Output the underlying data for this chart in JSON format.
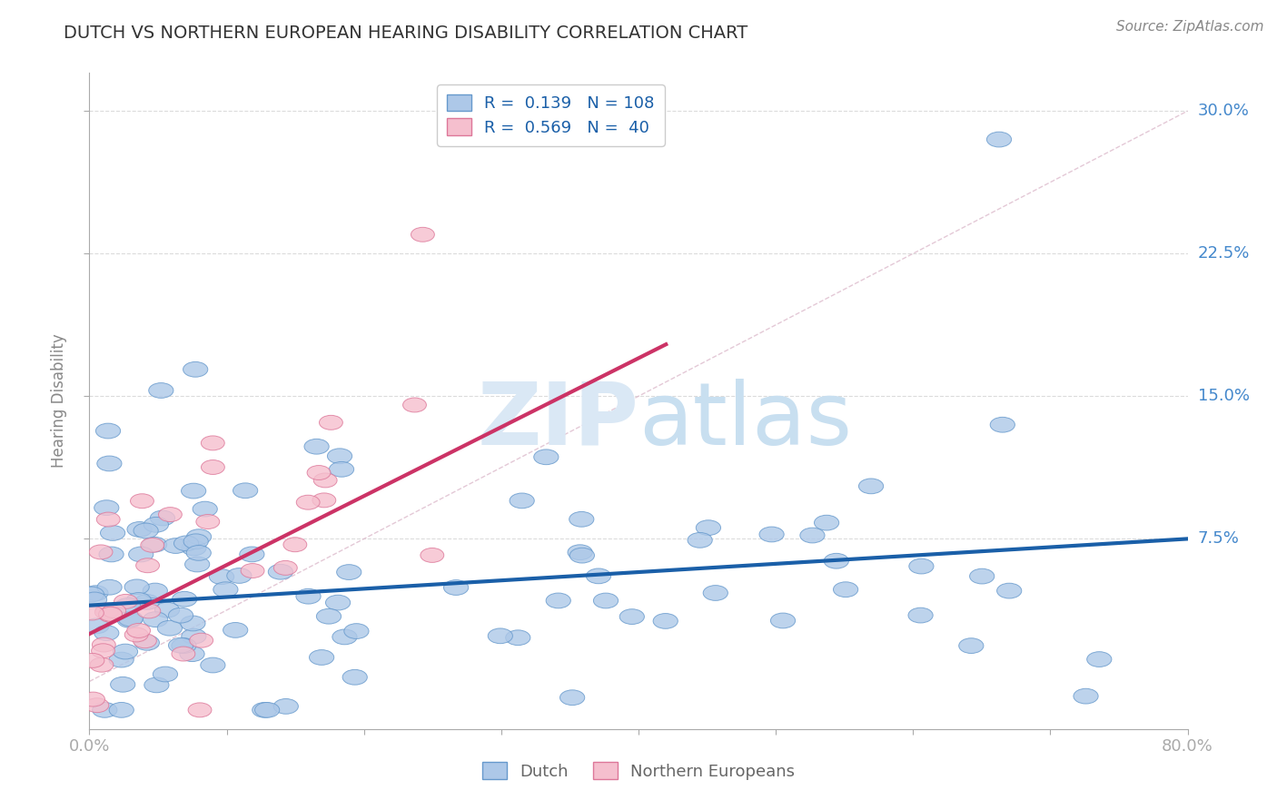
{
  "title": "DUTCH VS NORTHERN EUROPEAN HEARING DISABILITY CORRELATION CHART",
  "source": "Source: ZipAtlas.com",
  "ylabel": "Hearing Disability",
  "xlim": [
    0.0,
    0.8
  ],
  "ylim": [
    -0.025,
    0.32
  ],
  "yticks": [
    0.075,
    0.15,
    0.225,
    0.3
  ],
  "ytick_labels": [
    "7.5%",
    "15.0%",
    "22.5%",
    "30.0%"
  ],
  "dutch_color": "#adc8e8",
  "dutch_edge_color": "#6699cc",
  "northern_color": "#f5bfce",
  "northern_edge_color": "#dd7799",
  "dutch_R": 0.139,
  "dutch_N": 108,
  "northern_R": 0.569,
  "northern_N": 40,
  "dutch_line_color": "#1a5fa8",
  "northern_line_color": "#cc3366",
  "background_color": "#ffffff",
  "grid_color": "#cccccc",
  "title_color": "#333333",
  "axis_label_color": "#4488cc",
  "legend_text_color": "#1a5fa8",
  "watermark_color": "#dae8f5"
}
